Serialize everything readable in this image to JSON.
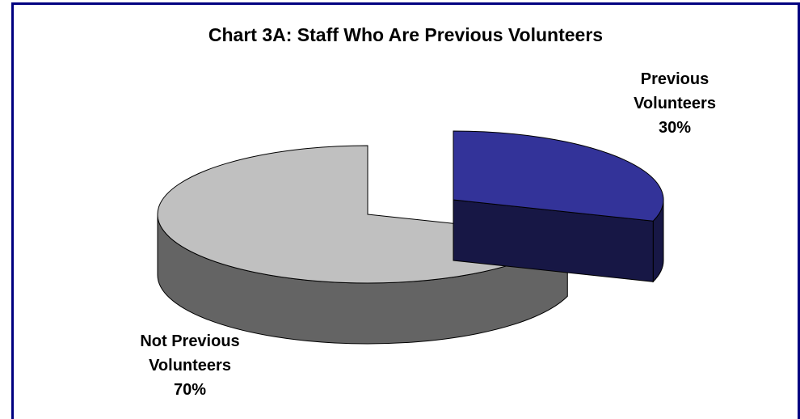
{
  "chart_data": {
    "type": "pie",
    "title": "Chart 3A: Staff Who Are Previous Volunteers",
    "slices": [
      {
        "label_line1": "Previous",
        "label_line2": "Volunteers",
        "value": 30,
        "value_label": "30%",
        "color": "#333399",
        "exploded": true
      },
      {
        "label_line1": "Not Previous",
        "label_line2": "Volunteers",
        "value": 70,
        "value_label": "70%",
        "color": "#c0c0c0",
        "exploded": false
      }
    ],
    "style": "3d-exploded",
    "border_color": "#000080"
  }
}
